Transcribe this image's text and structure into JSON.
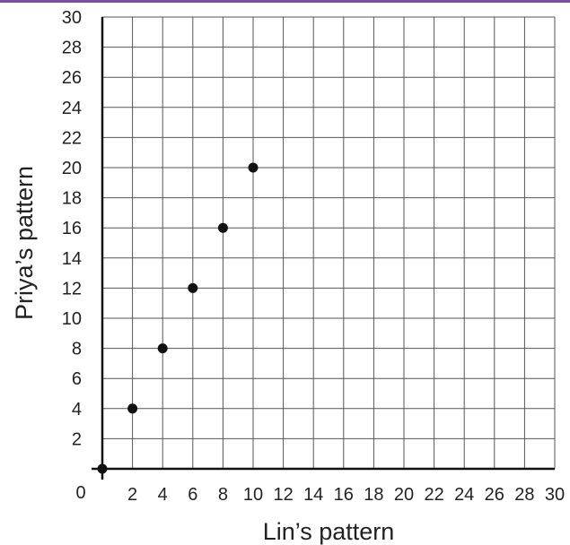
{
  "chart_data": {
    "type": "scatter",
    "title": "",
    "xlabel": "Lin’s pattern",
    "ylabel": "Priya’s pattern",
    "xlim": [
      0,
      30
    ],
    "ylim": [
      0,
      30
    ],
    "x_ticks": [
      2,
      4,
      6,
      8,
      10,
      12,
      14,
      16,
      18,
      20,
      22,
      24,
      26,
      28,
      30
    ],
    "y_ticks": [
      2,
      4,
      6,
      8,
      10,
      12,
      14,
      16,
      18,
      20,
      22,
      24,
      26,
      28,
      30
    ],
    "origin_label": "0",
    "grid": true,
    "series": [
      {
        "x": [
          0,
          2,
          4,
          6,
          8,
          10
        ],
        "y": [
          0,
          4,
          8,
          12,
          16,
          20
        ]
      }
    ],
    "colors": {
      "accent": "#7b4fa0",
      "grid": "#555555",
      "axis": "#111111",
      "point": "#111111"
    }
  }
}
